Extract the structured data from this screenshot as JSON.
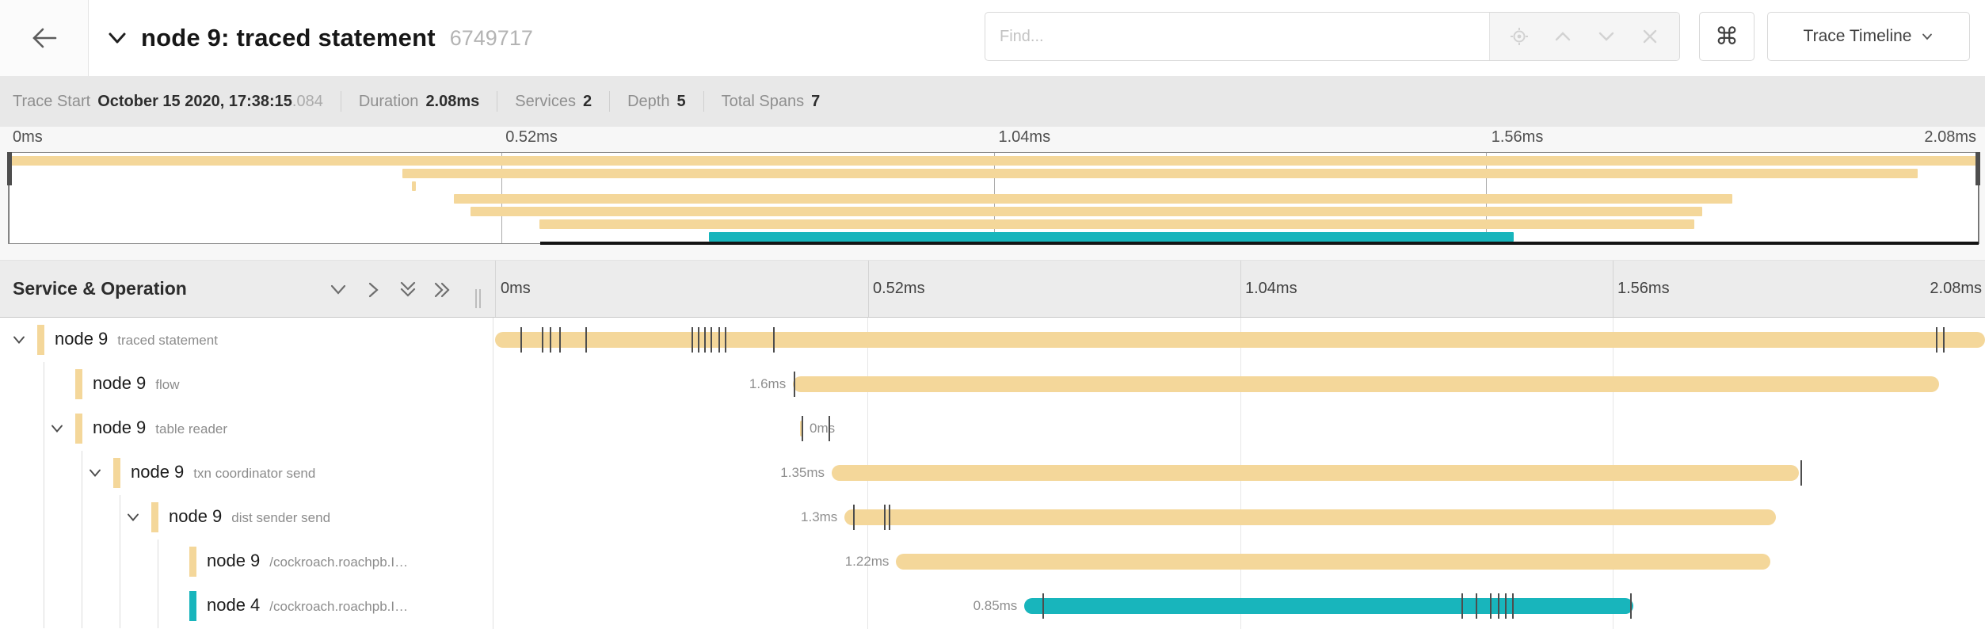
{
  "header": {
    "title": "node 9: traced statement",
    "trace_id": "6749717",
    "find_placeholder": "Find...",
    "shortcut_icon": "⌘",
    "view_selector_label": "Trace Timeline"
  },
  "summary": {
    "items": [
      {
        "label": "Trace Start",
        "value": "October 15 2020, 17:38:15",
        "suffix": ".084"
      },
      {
        "label": "Duration",
        "value": "2.08ms",
        "suffix": ""
      },
      {
        "label": "Services",
        "value": "2",
        "suffix": ""
      },
      {
        "label": "Depth",
        "value": "5",
        "suffix": ""
      },
      {
        "label": "Total Spans",
        "value": "7",
        "suffix": ""
      }
    ]
  },
  "timeline": {
    "total_duration_ms": 2.08,
    "axis_ticks": [
      "0ms",
      "0.52ms",
      "1.04ms",
      "1.56ms",
      "2.08ms"
    ],
    "left_header": "Service & Operation",
    "colors": {
      "node9": "#f4d79a",
      "node4": "#18b5bc"
    }
  },
  "spans": [
    {
      "service": "node 9",
      "operation": "traced statement",
      "depth": 0,
      "has_children": true,
      "color": "node9",
      "start_ms": 0,
      "duration_ms": 2.08,
      "label": "",
      "label_pos": "none",
      "log_ticks_ms": [
        0.036,
        0.066,
        0.077,
        0.091,
        0.127,
        0.275,
        0.284,
        0.293,
        0.302,
        0.313,
        0.322,
        0.389,
        2.013,
        2.022
      ]
    },
    {
      "service": "node 9",
      "operation": "flow",
      "depth": 1,
      "has_children": false,
      "color": "node9",
      "start_ms": 0.416,
      "duration_ms": 1.6,
      "label": "1.6ms",
      "label_pos": "left",
      "log_ticks_ms": [
        0.418
      ]
    },
    {
      "service": "node 9",
      "operation": "table reader",
      "depth": 1,
      "has_children": true,
      "color": "node9",
      "start_ms": 0.426,
      "duration_ms": 0.004,
      "label": "0ms",
      "label_pos": "right",
      "log_ticks_ms": [
        0.429,
        0.467
      ]
    },
    {
      "service": "node 9",
      "operation": "txn coordinator send",
      "depth": 2,
      "has_children": true,
      "color": "node9",
      "start_ms": 0.47,
      "duration_ms": 1.35,
      "label": "1.35ms",
      "label_pos": "left",
      "log_ticks_ms": [
        1.824
      ]
    },
    {
      "service": "node 9",
      "operation": "dist sender send",
      "depth": 3,
      "has_children": true,
      "color": "node9",
      "start_ms": 0.488,
      "duration_ms": 1.3,
      "label": "1.3ms",
      "label_pos": "left",
      "log_ticks_ms": [
        0.501,
        0.544,
        0.551
      ]
    },
    {
      "service": "node 9",
      "operation": "/cockroach.roachpb.I…",
      "depth": 4,
      "has_children": false,
      "color": "node9",
      "start_ms": 0.56,
      "duration_ms": 1.22,
      "label": "1.22ms",
      "label_pos": "left",
      "log_ticks_ms": []
    },
    {
      "service": "node 4",
      "operation": "/cockroach.roachpb.I…",
      "depth": 4,
      "has_children": false,
      "color": "node4",
      "start_ms": 0.739,
      "duration_ms": 0.85,
      "label": "0.85ms",
      "label_pos": "left",
      "log_ticks_ms": [
        0.765,
        1.35,
        1.37,
        1.39,
        1.401,
        1.411,
        1.421,
        1.586
      ]
    }
  ]
}
